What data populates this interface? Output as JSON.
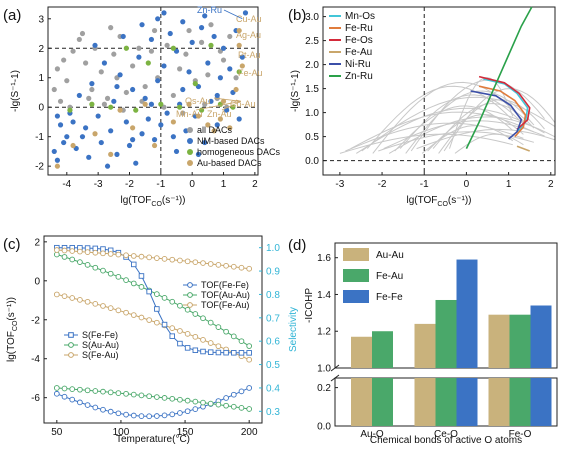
{
  "chart_data": [
    {
      "panel": "(a)",
      "type": "scatter",
      "xlabel_main": "lg(TOF",
      "xlabel_sub": "CO",
      "xlabel_tail": "(s⁻¹))",
      "ylabel": "-lg(S⁻¹-1)",
      "xlim": [
        -4.6,
        2.1
      ],
      "ylim": [
        -2.3,
        3.4
      ],
      "xticks": [
        "-4",
        "-3",
        "-2",
        "-1",
        "0",
        "1",
        "2"
      ],
      "yticks": [
        "-2",
        "-1",
        "0",
        "1",
        "2",
        "3"
      ],
      "guides": {
        "x": -1,
        "y": [
          0,
          2
        ]
      },
      "colors": {
        "all": "#a0a0a0",
        "nm": "#3b73c4",
        "homo": "#7cb342",
        "au": "#c9a66b"
      },
      "legend": [
        "all DACs",
        "NM-based DACs",
        "homogeneous DACs",
        "Au-based DACs"
      ],
      "labels": [
        "Zn-Ru",
        "Cu-Au",
        "Ag-Au",
        "Pt-Au",
        "Fe-Au",
        "Os-Au",
        "Mn-Au",
        "Zn-Au",
        "Co-Au"
      ],
      "series": [
        {
          "name": "all DACs",
          "points": [
            [
              -4.3,
              1.3
            ],
            [
              -4.1,
              1.6
            ],
            [
              -4.0,
              0.9
            ],
            [
              -3.8,
              1.9
            ],
            [
              -3.6,
              2.3
            ],
            [
              -3.4,
              1.5
            ],
            [
              -3.2,
              0.6
            ],
            [
              -3.1,
              2.0
            ],
            [
              -2.9,
              1.2
            ],
            [
              -2.7,
              0.3
            ],
            [
              -2.5,
              1.8
            ],
            [
              -2.3,
              2.4
            ],
            [
              -2.1,
              0.5
            ],
            [
              -1.9,
              1.4
            ],
            [
              -1.7,
              2.0
            ],
            [
              -1.5,
              0.7
            ],
            [
              -1.3,
              1.9
            ],
            [
              -1.1,
              1.0
            ],
            [
              -0.8,
              2.1
            ],
            [
              -0.6,
              0.4
            ],
            [
              -0.4,
              1.3
            ],
            [
              -0.2,
              1.8
            ],
            [
              0.1,
              0.9
            ],
            [
              0.3,
              2.2
            ],
            [
              0.5,
              1.1
            ],
            [
              0.8,
              0.3
            ],
            [
              1.0,
              1.6
            ],
            [
              1.2,
              2.4
            ],
            [
              -4.2,
              0.2
            ],
            [
              -3.9,
              0.0
            ],
            [
              -3.3,
              0.3
            ],
            [
              -2.8,
              0.1
            ],
            [
              -2.2,
              -0.1
            ],
            [
              -1.6,
              0.2
            ],
            [
              -0.9,
              0.0
            ],
            [
              -0.3,
              -0.2
            ],
            [
              0.4,
              0.1
            ],
            [
              1.1,
              0.0
            ],
            [
              -2.6,
              2.7
            ],
            [
              -1.2,
              2.6
            ],
            [
              0.6,
              2.8
            ],
            [
              -3.5,
              2.5
            ],
            [
              -0.1,
              2.6
            ],
            [
              -4.4,
              0.6
            ],
            [
              -2.4,
              1.0
            ],
            [
              0.9,
              1.9
            ],
            [
              1.4,
              1.0
            ]
          ]
        },
        {
          "name": "NM-based DACs",
          "points": [
            [
              -4.4,
              -1.5
            ],
            [
              -4.3,
              -1.8
            ],
            [
              -4.2,
              -0.6
            ],
            [
              -4.0,
              -1.0
            ],
            [
              -3.9,
              -0.2
            ],
            [
              -3.7,
              -1.4
            ],
            [
              -3.6,
              0.4
            ],
            [
              -3.4,
              -0.7
            ],
            [
              -3.3,
              -1.7
            ],
            [
              -3.2,
              0.8
            ],
            [
              -3.0,
              -0.3
            ],
            [
              -2.9,
              -1.2
            ],
            [
              -2.8,
              1.5
            ],
            [
              -2.6,
              -0.8
            ],
            [
              -2.5,
              0.2
            ],
            [
              -2.4,
              -1.6
            ],
            [
              -2.3,
              1.1
            ],
            [
              -2.1,
              -0.5
            ],
            [
              -2.0,
              -1.3
            ],
            [
              -1.9,
              0.6
            ],
            [
              -1.8,
              -1.9
            ],
            [
              -1.7,
              1.7
            ],
            [
              -1.6,
              -0.9
            ],
            [
              -1.5,
              0.3
            ],
            [
              -1.4,
              -0.4
            ],
            [
              -1.3,
              2.3
            ],
            [
              -1.2,
              -1.1
            ],
            [
              -1.1,
              0.9
            ],
            [
              -1.0,
              -0.6
            ],
            [
              -0.9,
              1.4
            ],
            [
              -0.8,
              -0.2
            ],
            [
              -0.7,
              2.5
            ],
            [
              -0.6,
              -1.0
            ],
            [
              -0.5,
              1.9
            ],
            [
              -0.4,
              0.1
            ],
            [
              -0.3,
              2.9
            ],
            [
              -0.2,
              -0.8
            ],
            [
              -0.1,
              1.2
            ],
            [
              0.0,
              2.2
            ],
            [
              0.1,
              -0.3
            ],
            [
              0.2,
              0.7
            ],
            [
              0.3,
              2.7
            ],
            [
              0.4,
              -1.2
            ],
            [
              0.5,
              1.5
            ],
            [
              0.6,
              0.2
            ],
            [
              0.7,
              2.4
            ],
            [
              0.8,
              -0.6
            ],
            [
              0.9,
              1.0
            ],
            [
              1.0,
              2.0
            ],
            [
              1.1,
              -0.1
            ],
            [
              1.2,
              1.3
            ],
            [
              1.3,
              0.5
            ],
            [
              1.4,
              2.6
            ],
            [
              1.5,
              -0.4
            ],
            [
              1.6,
              1.7
            ],
            [
              -1.1,
              3.0
            ],
            [
              -0.9,
              3.2
            ],
            [
              0.4,
              3.1
            ],
            [
              -2.2,
              2.4
            ],
            [
              -3.1,
              2.1
            ],
            [
              -1.6,
              2.8
            ],
            [
              0.2,
              -1.6
            ],
            [
              -0.5,
              -1.5
            ],
            [
              -1.9,
              -1.1
            ],
            [
              -2.7,
              -2.0
            ],
            [
              -3.8,
              -0.5
            ],
            [
              -4.1,
              -1.2
            ],
            [
              1.7,
              3.2
            ],
            [
              -0.3,
              0.6
            ],
            [
              0.8,
              0.4
            ],
            [
              -1.3,
              0.1
            ],
            [
              -2.4,
              0.7
            ],
            [
              -3.5,
              -1.0
            ],
            [
              -4.3,
              -0.3
            ]
          ]
        },
        {
          "name": "homogeneous DACs",
          "points": [
            [
              -3.9,
              -0.1
            ],
            [
              -3.2,
              0.1
            ],
            [
              -2.6,
              0.0
            ],
            [
              -1.8,
              -0.1
            ],
            [
              -1.0,
              0.1
            ],
            [
              -0.4,
              0.0
            ],
            [
              0.3,
              -0.1
            ],
            [
              0.9,
              0.1
            ],
            [
              1.3,
              0.0
            ],
            [
              -0.6,
              2.0
            ],
            [
              0.6,
              2.1
            ],
            [
              1.5,
              1.2
            ],
            [
              -1.4,
              1.5
            ],
            [
              -2.1,
              2.0
            ],
            [
              0.1,
              0.8
            ]
          ]
        },
        {
          "name": "Au-based DACs",
          "points": [
            [
              -4.3,
              -2.0
            ],
            [
              -3.8,
              -1.3
            ],
            [
              -3.1,
              -0.9
            ],
            [
              -2.6,
              -1.6
            ],
            [
              -1.9,
              -0.7
            ],
            [
              -1.2,
              -1.3
            ],
            [
              -0.6,
              -0.5
            ],
            [
              0.2,
              -0.3
            ],
            [
              0.5,
              -0.6
            ],
            [
              0.7,
              -0.8
            ],
            [
              0.9,
              -0.4
            ],
            [
              1.2,
              -0.7
            ],
            [
              1.5,
              2.6
            ],
            [
              1.5,
              2.1
            ],
            [
              1.6,
              1.4
            ],
            [
              1.4,
              0.6
            ],
            [
              -2.3,
              -0.1
            ],
            [
              -1.5,
              0.1
            ],
            [
              -0.1,
              0.1
            ],
            [
              1.0,
              0.2
            ]
          ]
        }
      ],
      "highlights": [
        {
          "label": "Zn-Ru",
          "x": 1.6,
          "y": 3.0
        }
      ]
    },
    {
      "panel": "(b)",
      "type": "line",
      "xlabel_main": "lg(TOF",
      "xlabel_sub": "CO",
      "xlabel_tail": "(s⁻¹))",
      "ylabel": "-lg(S⁻¹-1)",
      "xlim": [
        -3.4,
        2.1
      ],
      "ylim": [
        -0.3,
        3.2
      ],
      "xticks": [
        "-3",
        "-2",
        "-1",
        "0",
        "1",
        "2"
      ],
      "yticks": [
        "0.0",
        "0.5",
        "1.0",
        "1.5",
        "2.0",
        "2.5",
        "3.0"
      ],
      "guides": {
        "x": -1,
        "y": [
          0
        ]
      },
      "series": [
        {
          "name": "Mn-Os",
          "color": "#43c6d8",
          "points": [
            [
              0.4,
              1.7
            ],
            [
              0.9,
              1.6
            ],
            [
              1.2,
              1.4
            ],
            [
              1.45,
              1.1
            ],
            [
              1.4,
              0.8
            ],
            [
              1.2,
              0.6
            ]
          ]
        },
        {
          "name": "Fe-Ru",
          "color": "#e07c3c",
          "points": [
            [
              0.3,
              1.55
            ],
            [
              0.8,
              1.45
            ],
            [
              1.15,
              1.25
            ],
            [
              1.4,
              0.95
            ],
            [
              1.35,
              0.7
            ],
            [
              1.15,
              0.5
            ]
          ]
        },
        {
          "name": "Fe-Os",
          "color": "#d42a3a",
          "points": [
            [
              0.3,
              1.75
            ],
            [
              0.9,
              1.62
            ],
            [
              1.25,
              1.4
            ],
            [
              1.5,
              1.1
            ],
            [
              1.45,
              0.85
            ],
            [
              1.2,
              0.65
            ]
          ]
        },
        {
          "name": "Fe-Au",
          "color": "#c9a66b",
          "points": [
            [
              1.2,
              0.3
            ],
            [
              1.35,
              0.25
            ],
            [
              1.5,
              0.2
            ]
          ]
        },
        {
          "name": "Ni-Ru",
          "color": "#3b4fa8",
          "points": [
            [
              0.1,
              1.45
            ],
            [
              0.7,
              1.35
            ],
            [
              1.05,
              1.15
            ],
            [
              1.3,
              0.85
            ],
            [
              1.2,
              0.6
            ],
            [
              1.0,
              0.45
            ]
          ]
        },
        {
          "name": "Zn-Ru",
          "color": "#2aa14a",
          "points": [
            [
              0.0,
              0.25
            ],
            [
              0.3,
              0.8
            ],
            [
              0.6,
              1.4
            ],
            [
              1.0,
              2.2
            ],
            [
              1.3,
              2.8
            ],
            [
              1.55,
              3.2
            ]
          ]
        }
      ],
      "background_curves": 22
    },
    {
      "panel": "(c)",
      "type": "line",
      "xlabel": "Temperature(°C)",
      "ylabel_main": "lg(TOF",
      "ylabel_sub": "CO",
      "ylabel_tail": "(s⁻¹))",
      "y2label": "Selectivity",
      "xlim": [
        40,
        210
      ],
      "ylim": [
        -7.3,
        2.3
      ],
      "y2lim": [
        0.25,
        1.05
      ],
      "xticks": [
        "50",
        "100",
        "150",
        "200"
      ],
      "yticks": [
        "-6",
        "-4",
        "-2",
        "0",
        "2"
      ],
      "y2ticks": [
        "0.3",
        "0.4",
        "0.5",
        "0.6",
        "0.7",
        "0.8",
        "0.9",
        "1.0"
      ],
      "series": [
        {
          "name": "TOF(Fe-Fe)",
          "axis": "left",
          "color": "#3b73c4",
          "marker": "o",
          "x": [
            50,
            200
          ],
          "y_start": -5.8,
          "y_end": -5.5,
          "shape": "valley",
          "y_min": -6.95
        },
        {
          "name": "TOF(Au-Au)",
          "axis": "left",
          "color": "#4aa86a",
          "marker": "o",
          "x": [
            50,
            200
          ],
          "y_start": 1.35,
          "y_end": -3.35
        },
        {
          "name": "TOF(Fe-Au)",
          "axis": "left",
          "color": "#c9a66b",
          "marker": "o",
          "x": [
            50,
            200
          ],
          "y_start": -0.7,
          "y_end": -4.05
        },
        {
          "name": "S(Fe-Fe)",
          "axis": "right",
          "color": "#3b73c4",
          "marker": "s",
          "x": [
            50,
            200
          ],
          "y_start": 1.0,
          "y_end": 0.55,
          "shape": "sigmoid"
        },
        {
          "name": "S(Au-Au)",
          "axis": "right",
          "color": "#4aa86a",
          "marker": "o",
          "x": [
            50,
            200
          ],
          "y_start": 0.4,
          "y_end": 0.31
        },
        {
          "name": "S(Fe-Au)",
          "axis": "right",
          "color": "#c9a66b",
          "marker": "o",
          "x": [
            50,
            200
          ],
          "y_start": 0.99,
          "y_end": 0.91
        }
      ]
    },
    {
      "panel": "(d)",
      "type": "bar",
      "xlabel": "Chemical bonds of active O atoms",
      "ylabel": "-ICOHP",
      "categories": [
        "Au-O",
        "Ce-O",
        "Fe-O"
      ],
      "yticks": [
        "0.0",
        "0.2",
        "1.0",
        "1.2",
        "1.4",
        "1.6"
      ],
      "series": [
        {
          "name": "Au-Au",
          "color": "#c9b27c",
          "values": [
            1.17,
            1.24,
            1.29
          ]
        },
        {
          "name": "Fe-Au",
          "color": "#4aa86a",
          "values": [
            1.2,
            1.37,
            1.29
          ]
        },
        {
          "name": "Fe-Fe",
          "color": "#3b73c4",
          "values": [
            null,
            1.59,
            1.34
          ]
        }
      ]
    }
  ]
}
